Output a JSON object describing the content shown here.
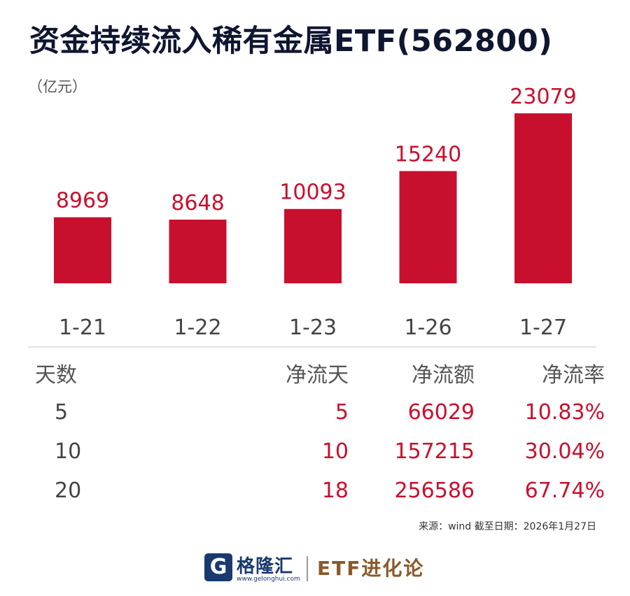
{
  "title": "资金持续流入稀有金属ETF(562800)",
  "unit": "（亿元）",
  "chart_data": {
    "type": "bar",
    "categories": [
      "1-21",
      "1-22",
      "1-23",
      "1-26",
      "1-27"
    ],
    "values": [
      8969,
      8648,
      10093,
      15240,
      23079
    ],
    "data_labels": [
      "8969",
      "8648",
      "10093",
      "15240",
      "23079"
    ],
    "bar_color": "#c8102e",
    "ylabel": "（亿元）",
    "ylim": [
      0,
      23079
    ],
    "grid": false
  },
  "table": {
    "headers": [
      "天数",
      "净流天",
      "净流额",
      "净流率"
    ],
    "rows": [
      [
        "5",
        "5",
        "66029",
        "10.83%"
      ],
      [
        "10",
        "10",
        "157215",
        "30.04%"
      ],
      [
        "20",
        "18",
        "256586",
        "67.74%"
      ]
    ]
  },
  "source": "来源：wind 截至日期：2026年1月27日",
  "footer": {
    "logo_icon": "G",
    "brand": "格隆汇",
    "brand_url": "www.gelonghui.com",
    "etf_brand": "ETF进化论"
  },
  "colors": {
    "accent": "#c8102e",
    "title": "#0e1630",
    "brand": "#1a3a6e",
    "etf_brand": "#8a5a2b"
  }
}
